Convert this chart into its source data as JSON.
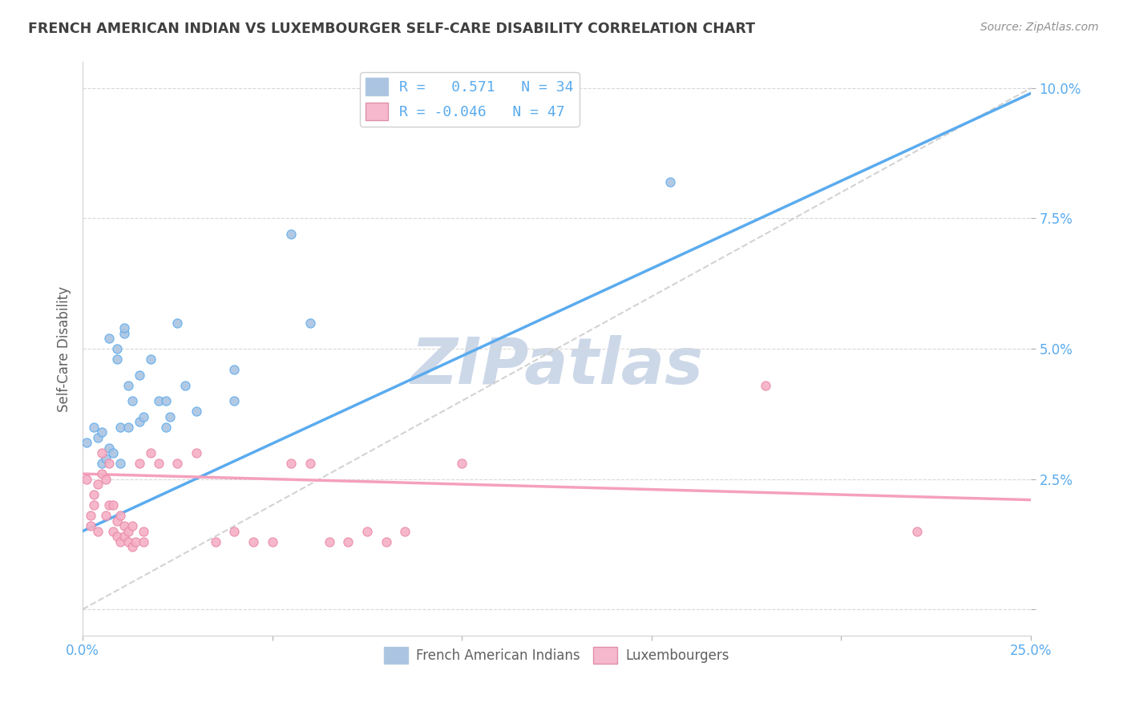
{
  "title": "FRENCH AMERICAN INDIAN VS LUXEMBOURGER SELF-CARE DISABILITY CORRELATION CHART",
  "source": "Source: ZipAtlas.com",
  "ylabel": "Self-Care Disability",
  "xlim": [
    0.0,
    0.25
  ],
  "ylim": [
    -0.005,
    0.105
  ],
  "xticks": [
    0.0,
    0.05,
    0.1,
    0.15,
    0.2,
    0.25
  ],
  "xticklabels_show": [
    "0.0%",
    "",
    "",
    "",
    "",
    "25.0%"
  ],
  "yticks": [
    0.0,
    0.025,
    0.05,
    0.075,
    0.1
  ],
  "yticklabels": [
    "",
    "2.5%",
    "5.0%",
    "7.5%",
    "10.0%"
  ],
  "scatter_blue_color": "#aac4e2",
  "scatter_pink_color": "#f5afc5",
  "line_blue_color": "#5aabee",
  "line_pink_color": "#f5a0bc",
  "trend_line_gray_color": "#c8c8c8",
  "watermark_color": "#ccd8e8",
  "blue_legend_color": "#aac4e2",
  "pink_legend_color": "#f5b8cc",
  "R_blue": 0.571,
  "N_blue": 34,
  "R_pink": -0.046,
  "N_pink": 47,
  "blue_points": [
    [
      0.001,
      0.032
    ],
    [
      0.003,
      0.035
    ],
    [
      0.004,
      0.033
    ],
    [
      0.005,
      0.034
    ],
    [
      0.005,
      0.028
    ],
    [
      0.006,
      0.029
    ],
    [
      0.007,
      0.031
    ],
    [
      0.007,
      0.052
    ],
    [
      0.008,
      0.03
    ],
    [
      0.009,
      0.048
    ],
    [
      0.009,
      0.05
    ],
    [
      0.01,
      0.028
    ],
    [
      0.01,
      0.035
    ],
    [
      0.011,
      0.053
    ],
    [
      0.011,
      0.054
    ],
    [
      0.012,
      0.043
    ],
    [
      0.012,
      0.035
    ],
    [
      0.013,
      0.04
    ],
    [
      0.015,
      0.045
    ],
    [
      0.015,
      0.036
    ],
    [
      0.016,
      0.037
    ],
    [
      0.018,
      0.048
    ],
    [
      0.02,
      0.04
    ],
    [
      0.022,
      0.04
    ],
    [
      0.022,
      0.035
    ],
    [
      0.023,
      0.037
    ],
    [
      0.025,
      0.055
    ],
    [
      0.027,
      0.043
    ],
    [
      0.03,
      0.038
    ],
    [
      0.04,
      0.046
    ],
    [
      0.04,
      0.04
    ],
    [
      0.055,
      0.072
    ],
    [
      0.06,
      0.055
    ],
    [
      0.155,
      0.082
    ]
  ],
  "pink_points": [
    [
      0.001,
      0.025
    ],
    [
      0.002,
      0.018
    ],
    [
      0.002,
      0.016
    ],
    [
      0.003,
      0.02
    ],
    [
      0.003,
      0.022
    ],
    [
      0.004,
      0.015
    ],
    [
      0.004,
      0.024
    ],
    [
      0.005,
      0.026
    ],
    [
      0.005,
      0.03
    ],
    [
      0.006,
      0.018
    ],
    [
      0.006,
      0.025
    ],
    [
      0.007,
      0.02
    ],
    [
      0.007,
      0.028
    ],
    [
      0.008,
      0.02
    ],
    [
      0.008,
      0.015
    ],
    [
      0.009,
      0.017
    ],
    [
      0.009,
      0.014
    ],
    [
      0.01,
      0.013
    ],
    [
      0.01,
      0.018
    ],
    [
      0.011,
      0.014
    ],
    [
      0.011,
      0.016
    ],
    [
      0.012,
      0.013
    ],
    [
      0.012,
      0.015
    ],
    [
      0.013,
      0.016
    ],
    [
      0.013,
      0.012
    ],
    [
      0.014,
      0.013
    ],
    [
      0.015,
      0.028
    ],
    [
      0.016,
      0.013
    ],
    [
      0.016,
      0.015
    ],
    [
      0.018,
      0.03
    ],
    [
      0.02,
      0.028
    ],
    [
      0.025,
      0.028
    ],
    [
      0.03,
      0.03
    ],
    [
      0.035,
      0.013
    ],
    [
      0.04,
      0.015
    ],
    [
      0.045,
      0.013
    ],
    [
      0.05,
      0.013
    ],
    [
      0.055,
      0.028
    ],
    [
      0.06,
      0.028
    ],
    [
      0.065,
      0.013
    ],
    [
      0.07,
      0.013
    ],
    [
      0.075,
      0.015
    ],
    [
      0.08,
      0.013
    ],
    [
      0.085,
      0.015
    ],
    [
      0.1,
      0.028
    ],
    [
      0.18,
      0.043
    ],
    [
      0.22,
      0.015
    ]
  ],
  "blue_line_x": [
    0.0,
    0.25
  ],
  "blue_line_y": [
    0.015,
    0.099
  ],
  "pink_line_x": [
    0.0,
    0.25
  ],
  "pink_line_y": [
    0.026,
    0.021
  ],
  "gray_dash_line_x": [
    0.0,
    0.25
  ],
  "gray_dash_line_y": [
    0.0,
    0.1
  ],
  "background_color": "#ffffff",
  "grid_color": "#d8d8d8",
  "title_color": "#404040",
  "source_color": "#909090",
  "axis_label_color": "#606060",
  "tick_color_blue": "#5aabee",
  "tick_color_gray": "#909090",
  "legend_text_color_blue": "#5aabee"
}
